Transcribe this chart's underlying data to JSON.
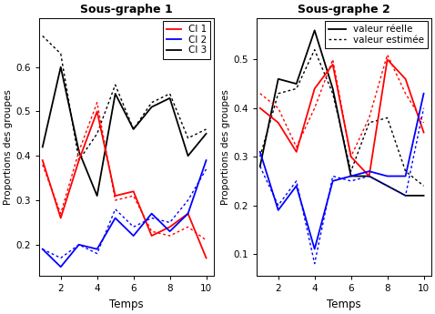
{
  "x": [
    1,
    2,
    3,
    4,
    5,
    6,
    7,
    8,
    9,
    10
  ],
  "sub1_ci1_real": [
    0.39,
    0.26,
    0.39,
    0.5,
    0.31,
    0.32,
    0.22,
    0.24,
    0.27,
    0.17
  ],
  "sub1_ci1_est": [
    0.38,
    0.27,
    0.41,
    0.52,
    0.3,
    0.31,
    0.23,
    0.22,
    0.24,
    0.21
  ],
  "sub1_ci2_real": [
    0.19,
    0.15,
    0.2,
    0.19,
    0.26,
    0.22,
    0.27,
    0.23,
    0.27,
    0.39
  ],
  "sub1_ci2_est": [
    0.19,
    0.17,
    0.2,
    0.18,
    0.28,
    0.24,
    0.26,
    0.25,
    0.3,
    0.37
  ],
  "sub1_ci3_real": [
    0.42,
    0.6,
    0.41,
    0.31,
    0.54,
    0.46,
    0.51,
    0.53,
    0.4,
    0.45
  ],
  "sub1_ci3_est": [
    0.67,
    0.63,
    0.39,
    0.45,
    0.56,
    0.46,
    0.52,
    0.54,
    0.44,
    0.46
  ],
  "sub2_ci1_real": [
    0.4,
    0.37,
    0.31,
    0.44,
    0.49,
    0.3,
    0.26,
    0.5,
    0.46,
    0.35
  ],
  "sub2_ci1_est": [
    0.43,
    0.4,
    0.32,
    0.4,
    0.5,
    0.3,
    0.38,
    0.51,
    0.43,
    0.37
  ],
  "sub2_ci2_real": [
    0.31,
    0.19,
    0.24,
    0.11,
    0.25,
    0.26,
    0.27,
    0.26,
    0.26,
    0.43
  ],
  "sub2_ci2_est": [
    0.28,
    0.2,
    0.25,
    0.08,
    0.26,
    0.25,
    0.26,
    0.24,
    0.22,
    0.4
  ],
  "sub2_ci3_real": [
    0.28,
    0.46,
    0.45,
    0.56,
    0.44,
    0.26,
    0.26,
    0.24,
    0.22,
    0.22
  ],
  "sub2_ci3_est": [
    0.3,
    0.43,
    0.44,
    0.52,
    0.43,
    0.27,
    0.37,
    0.38,
    0.27,
    0.24
  ],
  "color_ci1": "#FF0000",
  "color_ci2": "#0000FF",
  "color_ci3": "#000000",
  "title1": "Sous-graphe 1",
  "title2": "Sous-graphe 2",
  "xlabel": "Temps",
  "ylabel": "Proportions des groupes",
  "sub1_ylim": [
    0.13,
    0.71
  ],
  "sub2_ylim": [
    0.055,
    0.585
  ],
  "sub1_yticks": [
    0.2,
    0.3,
    0.4,
    0.5,
    0.6
  ],
  "sub2_yticks": [
    0.1,
    0.2,
    0.3,
    0.4,
    0.5
  ],
  "xticks": [
    2,
    4,
    6,
    8,
    10
  ],
  "legend1": [
    "Cl 1",
    "Cl 2",
    "Cl 3"
  ],
  "legend2_solid": "valeur réelle",
  "legend2_dashed": "valeur estimée"
}
